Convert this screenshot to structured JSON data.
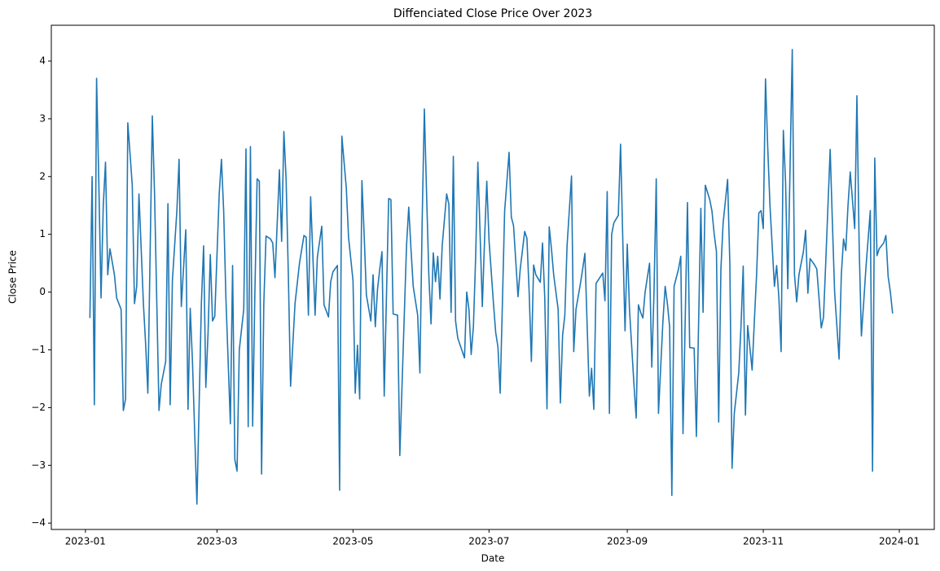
{
  "chart_data": {
    "type": "line",
    "title": "Diffenciated Close Price Over 2023",
    "x_label": "Date",
    "y_label": "Close Price",
    "color": "#1f77b4",
    "xlim": [
      -15.3,
      380.7
    ],
    "ylim": [
      -4.11,
      4.62
    ],
    "xticks": [
      {
        "value": 0,
        "label": "2023-01"
      },
      {
        "value": 59,
        "label": "2023-03"
      },
      {
        "value": 120,
        "label": "2023-05"
      },
      {
        "value": 181,
        "label": "2023-07"
      },
      {
        "value": 243,
        "label": "2023-09"
      },
      {
        "value": 304,
        "label": "2023-11"
      },
      {
        "value": 365,
        "label": "2024-01"
      }
    ],
    "yticks": [
      {
        "value": -4,
        "label": "−4"
      },
      {
        "value": -3,
        "label": "−3"
      },
      {
        "value": -2,
        "label": "−2"
      },
      {
        "value": -1,
        "label": "−1"
      },
      0,
      1,
      2,
      3,
      4
    ],
    "x": [
      2,
      3,
      4,
      5,
      6,
      7,
      8,
      9,
      10,
      11,
      13,
      14,
      16,
      17,
      18,
      19,
      20,
      21,
      22,
      23,
      24,
      26,
      27,
      28,
      30,
      31,
      33,
      34,
      36,
      37,
      38,
      39,
      41,
      42,
      43,
      45,
      46,
      47,
      48,
      50,
      52,
      53,
      54,
      55,
      56,
      57,
      58,
      60,
      61,
      62,
      63,
      65,
      66,
      67,
      68,
      69,
      71,
      72,
      73,
      74,
      75,
      76,
      77,
      78,
      79,
      80,
      81,
      83,
      84,
      85,
      87,
      88,
      89,
      90,
      91,
      92,
      94,
      96,
      98,
      99,
      100,
      101,
      103,
      104,
      106,
      107,
      109,
      110,
      111,
      113,
      114,
      115,
      117,
      118,
      120,
      121,
      122,
      123,
      124,
      125,
      126,
      128,
      129,
      130,
      131,
      132,
      133,
      134,
      136,
      137,
      138,
      140,
      141,
      142,
      144,
      145,
      146,
      147,
      149,
      150,
      151,
      152,
      153,
      154,
      155,
      156,
      157,
      158,
      159,
      160,
      162,
      163,
      164,
      165,
      166,
      167,
      170,
      171,
      172,
      173,
      174,
      175,
      176,
      178,
      179,
      180,
      181,
      183,
      184,
      185,
      186,
      187,
      188,
      190,
      191,
      192,
      194,
      195,
      197,
      198,
      199,
      200,
      201,
      202,
      204,
      205,
      206,
      207,
      208,
      209,
      210,
      212,
      213,
      214,
      215,
      216,
      218,
      219,
      220,
      222,
      223,
      224,
      226,
      227,
      228,
      229,
      231,
      232,
      233,
      234,
      235,
      236,
      237,
      239,
      240,
      241,
      242,
      243,
      244,
      246,
      247,
      248,
      249,
      250,
      251,
      253,
      254,
      255,
      256,
      257,
      259,
      260,
      261,
      262,
      263,
      264,
      266,
      267,
      268,
      270,
      271,
      273,
      274,
      276,
      277,
      278,
      280,
      281,
      282,
      283,
      284,
      285,
      286,
      288,
      289,
      290,
      291,
      293,
      294,
      295,
      296,
      297,
      299,
      300,
      301,
      302,
      303,
      304,
      305,
      306,
      307,
      309,
      310,
      311,
      312,
      313,
      314,
      315,
      317,
      318,
      319,
      320,
      322,
      323,
      324,
      325,
      327,
      328,
      329,
      330,
      331,
      332,
      334,
      335,
      336,
      338,
      339,
      340,
      341,
      342,
      343,
      345,
      346,
      347,
      348,
      349,
      350,
      352,
      353,
      354,
      355,
      356,
      358,
      359,
      360,
      361,
      362
    ],
    "values": [
      -0.45,
      2.0,
      -1.95,
      3.7,
      1.9,
      -0.1,
      1.5,
      2.25,
      0.3,
      0.75,
      0.3,
      -0.1,
      -0.3,
      -2.05,
      -1.85,
      2.93,
      2.4,
      1.85,
      -0.2,
      0.1,
      1.7,
      -0.2,
      -0.9,
      -1.75,
      3.05,
      1.7,
      -2.05,
      -1.6,
      -1.2,
      1.53,
      -1.95,
      0.2,
      1.4,
      2.3,
      -0.25,
      1.08,
      -2.03,
      -0.28,
      -1.2,
      -3.67,
      -0.2,
      0.8,
      -1.65,
      -0.7,
      0.65,
      -0.5,
      -0.42,
      1.7,
      2.3,
      1.4,
      -0.1,
      -2.28,
      0.46,
      -2.9,
      -3.1,
      -1.0,
      -0.3,
      2.48,
      -2.33,
      2.52,
      -2.32,
      0.0,
      1.96,
      1.92,
      -3.15,
      -0.2,
      0.97,
      0.92,
      0.85,
      0.25,
      2.12,
      0.88,
      2.78,
      1.95,
      0.3,
      -1.63,
      -0.2,
      0.5,
      0.98,
      0.95,
      -0.4,
      1.65,
      -0.4,
      0.6,
      1.14,
      -0.22,
      -0.43,
      0.18,
      0.35,
      0.46,
      -3.43,
      2.7,
      1.8,
      0.95,
      0.2,
      -1.75,
      -0.92,
      -1.85,
      1.93,
      1.0,
      -0.05,
      -0.5,
      0.3,
      -0.6,
      0.05,
      0.4,
      0.7,
      -1.8,
      1.62,
      1.6,
      -0.38,
      -0.4,
      -2.83,
      -1.6,
      0.8,
      1.47,
      0.75,
      0.1,
      -0.4,
      -1.4,
      1.2,
      3.17,
      1.7,
      0.3,
      -0.55,
      0.68,
      0.18,
      0.62,
      -0.12,
      0.8,
      1.7,
      1.52,
      -0.35,
      2.35,
      -0.5,
      -0.8,
      -1.14,
      0.0,
      -0.3,
      -1.08,
      -0.6,
      0.6,
      2.25,
      -0.25,
      0.9,
      1.92,
      0.9,
      -0.2,
      -0.7,
      -0.95,
      -1.75,
      -0.2,
      1.4,
      2.42,
      1.3,
      1.15,
      -0.08,
      0.4,
      1.05,
      0.93,
      0.0,
      -1.2,
      0.47,
      0.3,
      0.17,
      0.85,
      -0.1,
      -2.02,
      1.13,
      0.75,
      0.3,
      -0.3,
      -1.92,
      -0.75,
      -0.4,
      0.8,
      2.01,
      -1.03,
      -0.3,
      0.15,
      0.4,
      0.67,
      -1.8,
      -1.32,
      -2.03,
      0.15,
      0.27,
      0.33,
      -0.15,
      1.74,
      -2.1,
      1.0,
      1.2,
      1.33,
      2.56,
      0.9,
      -0.67,
      0.83,
      -0.3,
      -1.6,
      -2.18,
      -0.22,
      -0.35,
      -0.45,
      0.0,
      0.5,
      -1.3,
      0.0,
      1.96,
      -2.1,
      -0.5,
      0.1,
      -0.2,
      -0.6,
      -3.52,
      0.1,
      0.4,
      0.62,
      -2.45,
      1.55,
      -0.96,
      -0.97,
      -2.5,
      1.45,
      -0.35,
      1.85,
      1.6,
      1.4,
      1.0,
      0.7,
      -2.25,
      0.4,
      1.2,
      1.95,
      0.5,
      -3.05,
      -2.1,
      -1.4,
      -0.6,
      0.45,
      -2.13,
      -0.58,
      -1.35,
      -0.5,
      0.3,
      1.37,
      1.41,
      1.1,
      3.69,
      2.5,
      1.5,
      0.1,
      0.46,
      -0.1,
      -1.03,
      2.8,
      1.9,
      0.06,
      4.2,
      0.3,
      -0.17,
      0.3,
      0.7,
      1.07,
      -0.02,
      0.58,
      0.47,
      0.4,
      -0.1,
      -0.62,
      -0.44,
      0.5,
      2.47,
      1.2,
      0.0,
      -1.16,
      0.3,
      0.92,
      0.72,
      1.5,
      2.08,
      1.1,
      3.4,
      0.8,
      -0.76,
      -0.2,
      0.4,
      1.41,
      -3.1,
      2.32,
      0.63,
      0.75,
      0.85,
      0.98,
      0.27,
      0.0,
      -0.37
    ]
  }
}
